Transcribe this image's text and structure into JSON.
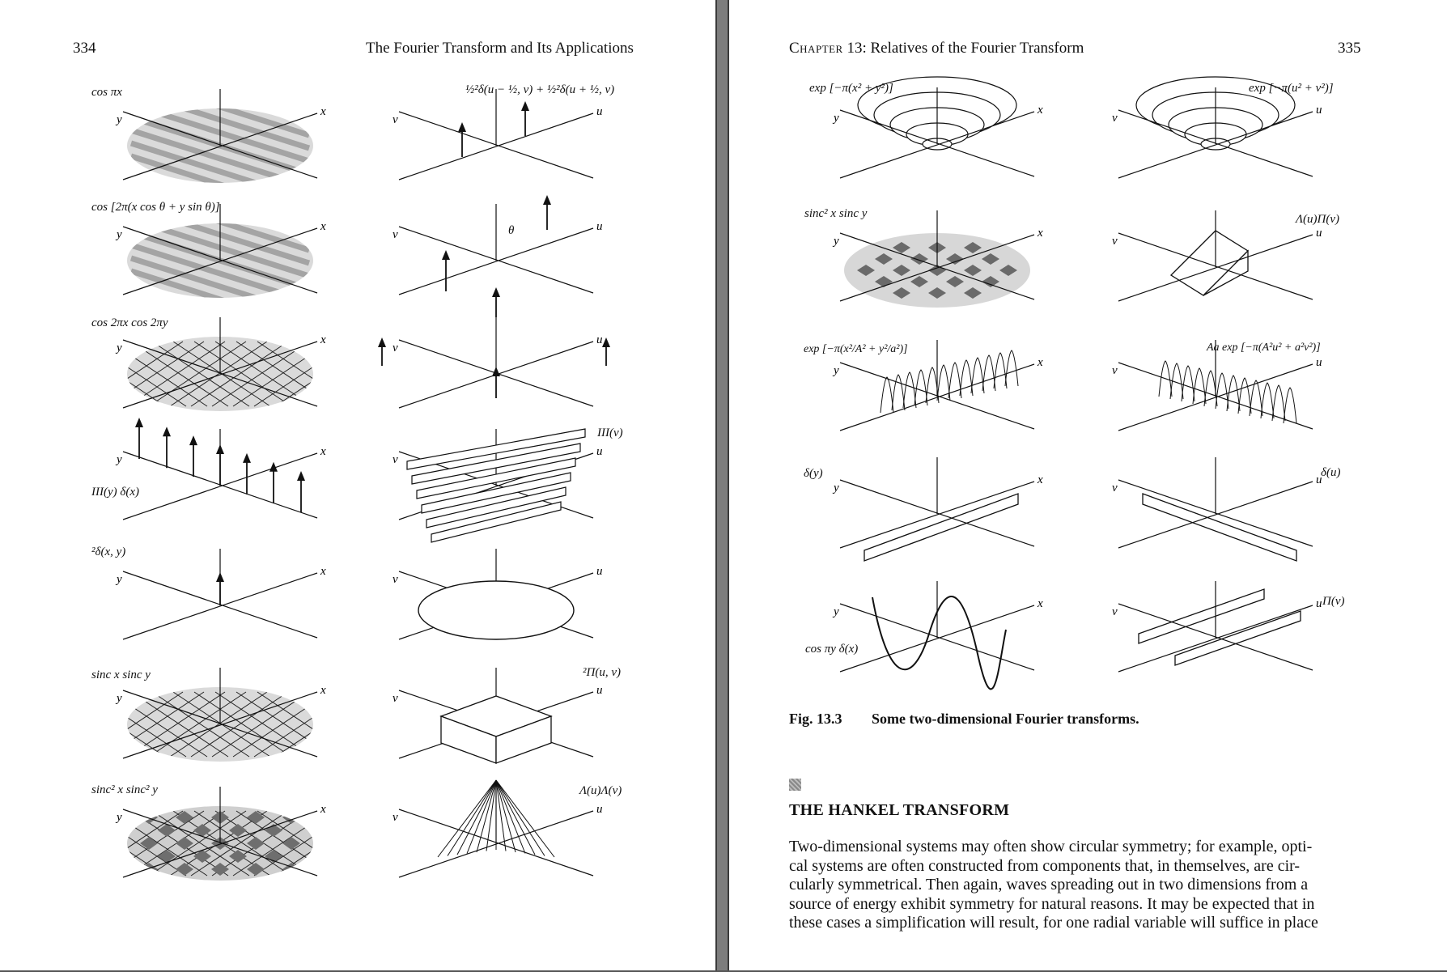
{
  "left_page": {
    "page_number": "334",
    "running_head": "The Fourier Transform and Its Applications",
    "rows": [
      {
        "func": "cos πx",
        "transform": "½²δ(u − ½, v) + ½²δ(u + ½, v)"
      },
      {
        "func": "cos [2π(x cos θ + y sin θ)]",
        "transform": "",
        "angle_label": "θ"
      },
      {
        "func": "cos 2πx cos 2πy",
        "transform": ""
      },
      {
        "func": "III(y) δ(x)",
        "transform": "III(v)"
      },
      {
        "func": "²δ(x, y)",
        "transform": ""
      },
      {
        "func": "sinc x sinc y",
        "transform": "²Π(u, v)"
      },
      {
        "func": "sinc² x sinc² y",
        "transform": "Λ(u)Λ(v)"
      }
    ]
  },
  "right_page": {
    "chapter_word": "Chapter",
    "chapter_rest": "13: Relatives of the Fourier Transform",
    "page_number": "335",
    "rows": [
      {
        "func": "exp [−π(x² + y²)]",
        "transform": "exp [−π(u² + v²)]"
      },
      {
        "func": "sinc² x sinc y",
        "transform": "Λ(u)Π(v)"
      },
      {
        "func": "exp [−π(x²/A² + y²/a²)]",
        "transform": "Aa exp [−π(A²u² + a²v²)]"
      },
      {
        "func": "δ(y)",
        "transform": "δ(u)"
      },
      {
        "func": "cos πy δ(x)",
        "transform": "Π(v)"
      }
    ],
    "figure": {
      "number": "Fig. 13.3",
      "caption": "Some two-dimensional Fourier transforms."
    },
    "section_title": "THE HANKEL TRANSFORM",
    "body_lines": [
      "Two-dimensional systems may often show circular symmetry; for example, opti-",
      "cal systems are often constructed from components that, in themselves, are cir-",
      "cularly symmetrical. Then again, waves spreading out in two dimensions from a",
      "source of energy exhibit symmetry for natural reasons. It may be expected that in",
      "these cases a simplification will result, for one radial variable will suffice in place"
    ]
  },
  "axis_labels": {
    "x": "x",
    "y": "y",
    "u": "u",
    "v": "v"
  }
}
